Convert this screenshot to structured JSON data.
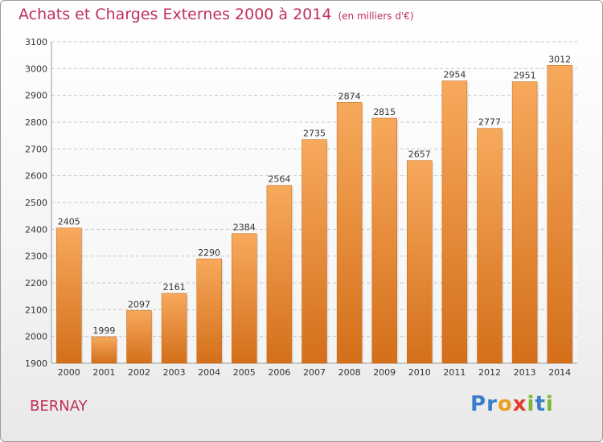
{
  "header": {
    "title": "Achats et Charges Externes 2000 à 2014",
    "unit": "(en milliers d'€)"
  },
  "footer": {
    "place": "BERNAY",
    "brand": "Proxiti",
    "brand_letters": [
      {
        "ch": "P",
        "color": "#3a7dc8"
      },
      {
        "ch": "r",
        "color": "#3a7dc8"
      },
      {
        "ch": "o",
        "color": "#e8a020"
      },
      {
        "ch": "x",
        "color": "#e23a2e"
      },
      {
        "ch": "i",
        "color": "#7ab830"
      },
      {
        "ch": "t",
        "color": "#3a7dc8"
      },
      {
        "ch": "i",
        "color": "#7ab830"
      }
    ]
  },
  "colors": {
    "title": "#c0305a",
    "bar_top": "#f7a95c",
    "bar_bottom": "#d46f1a",
    "grid": "#c8c8c8",
    "axis_text": "#333333"
  },
  "chart_data": {
    "type": "bar",
    "title": "Achats et Charges Externes 2000 à 2014",
    "subtitle": "(en milliers d'€)",
    "xlabel": "",
    "ylabel": "",
    "ylim": [
      1900,
      3100
    ],
    "yticks": [
      1900,
      2000,
      2100,
      2200,
      2300,
      2400,
      2500,
      2600,
      2700,
      2800,
      2900,
      3000,
      3100
    ],
    "grid": true,
    "categories": [
      "2000",
      "2001",
      "2002",
      "2003",
      "2004",
      "2005",
      "2006",
      "2007",
      "2008",
      "2009",
      "2010",
      "2011",
      "2012",
      "2013",
      "2014"
    ],
    "values": [
      2405,
      1999,
      2097,
      2161,
      2290,
      2384,
      2564,
      2735,
      2874,
      2815,
      2657,
      2954,
      2777,
      2951,
      3012
    ]
  }
}
